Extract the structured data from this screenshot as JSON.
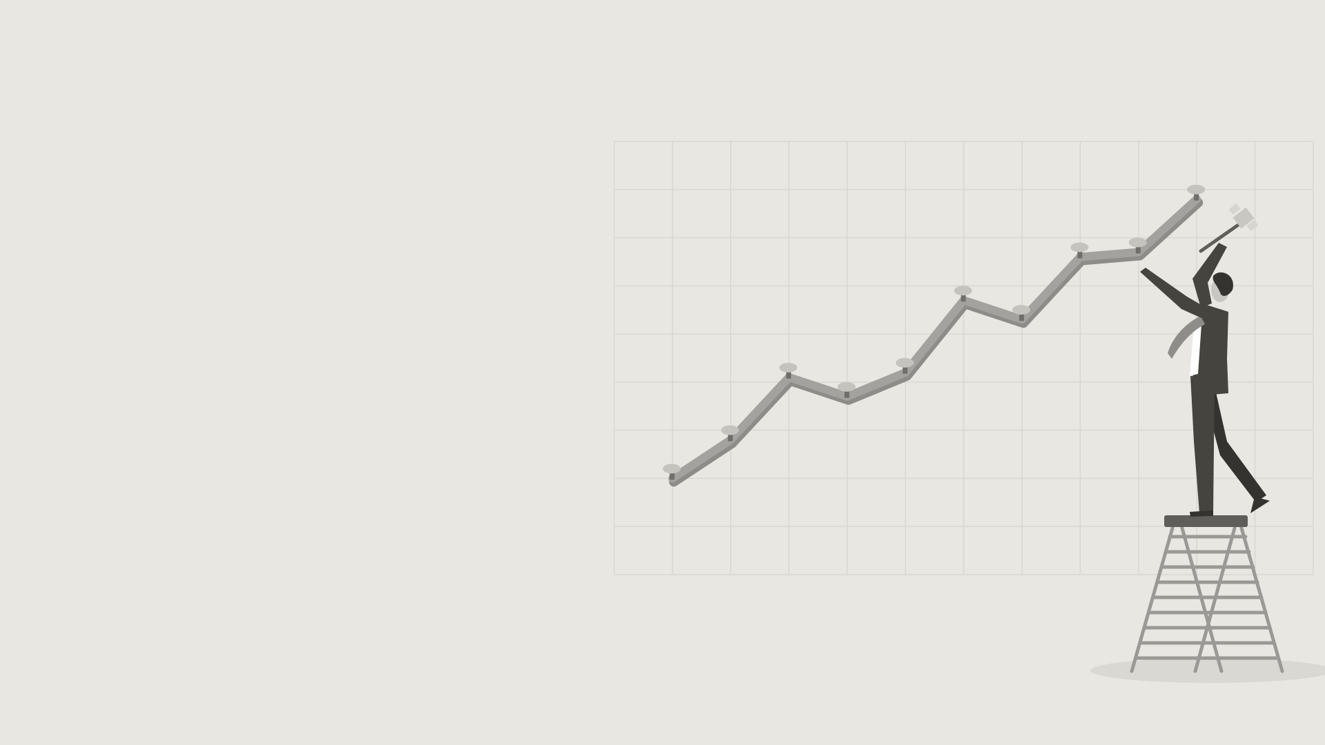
{
  "scene": {
    "description_label": "",
    "colors": {
      "background": "#e8e7e2",
      "grid": "#d8d7d2",
      "line": "#a3a29e",
      "line_shadow": "#8d8c88",
      "nail_head": "#c4c3be",
      "nail_body": "#6f6e6a",
      "suit": "#45443f",
      "suit_dark": "#34332f",
      "shirt": "#ffffff",
      "tie": "#8e8d89",
      "ladder": "#9a9995",
      "ladder_top": "#5f5e5a",
      "floor_shadow": "#d9d8d3",
      "hammer": "#c8c7c2"
    },
    "icons": [
      "person-hammering-icon",
      "ladder-icon",
      "hammer-icon",
      "nail-icon"
    ]
  },
  "chart_data": {
    "type": "line",
    "title": "",
    "xlabel": "",
    "ylabel": "",
    "grid": true,
    "x": [
      1,
      2,
      3,
      4,
      5,
      6,
      7,
      8,
      9,
      10
    ],
    "series": [
      {
        "values": [
          2.0,
          2.8,
          4.1,
          3.7,
          4.2,
          5.7,
          5.3,
          6.6,
          6.7,
          7.8
        ]
      }
    ],
    "xlim": [
      0,
      12
    ],
    "ylim": [
      0,
      9
    ]
  }
}
